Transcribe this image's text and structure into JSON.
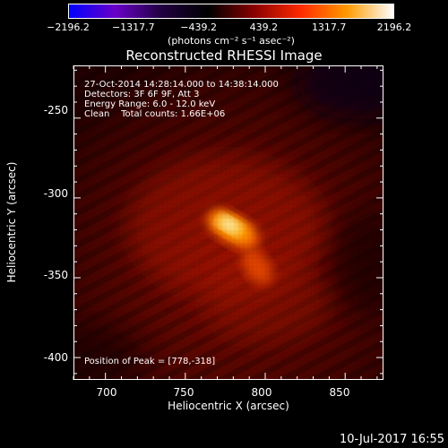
{
  "colorbar": {
    "ticks": [
      "−2196.2",
      "−1317.7",
      "−439.2",
      "439.2",
      "1317.7",
      "2196.2"
    ],
    "tick_values": [
      -2196.2,
      -1317.7,
      -439.2,
      439.2,
      1317.7,
      2196.2
    ],
    "range": [
      -2196.2,
      2196.2
    ],
    "units": "(photons cm⁻² s⁻¹ asec⁻²)",
    "colors": [
      "#0000ff",
      "#6a00c8",
      "#200040",
      "#000000",
      "#8a0000",
      "#ff2a00",
      "#ff9a00",
      "#ffffff"
    ]
  },
  "title": "Reconstructed RHESSI Image",
  "annotations": {
    "time_range": "27-Oct-2014 14:28:14.000 to 14:38:14.000",
    "detectors": "Detectors: 3F 6F 9F, Att 3",
    "energy": "Energy Range: 6.0 - 12.0 keV",
    "algo": "Clean    Total counts: 1.66E+06",
    "peak": "Position of Peak = [778,-318]"
  },
  "axes": {
    "x_label": "Heliocentric X (arcsec)",
    "y_label": "Heliocentric Y (arcsec)",
    "x_ticks": [
      "700",
      "750",
      "800",
      "850"
    ],
    "x_tick_values": [
      700,
      750,
      800,
      850
    ],
    "y_ticks": [
      "-250",
      "-300",
      "-350",
      "-400"
    ],
    "y_tick_values": [
      -250,
      -300,
      -350,
      -400
    ],
    "x_range": [
      680,
      874
    ],
    "y_range": [
      -414,
      -217
    ]
  },
  "image": {
    "peak": [
      778,
      -318
    ],
    "secondary": [
      797,
      -338
    ]
  },
  "footer": {
    "timestamp": "10-Jul-2017 16:55"
  }
}
